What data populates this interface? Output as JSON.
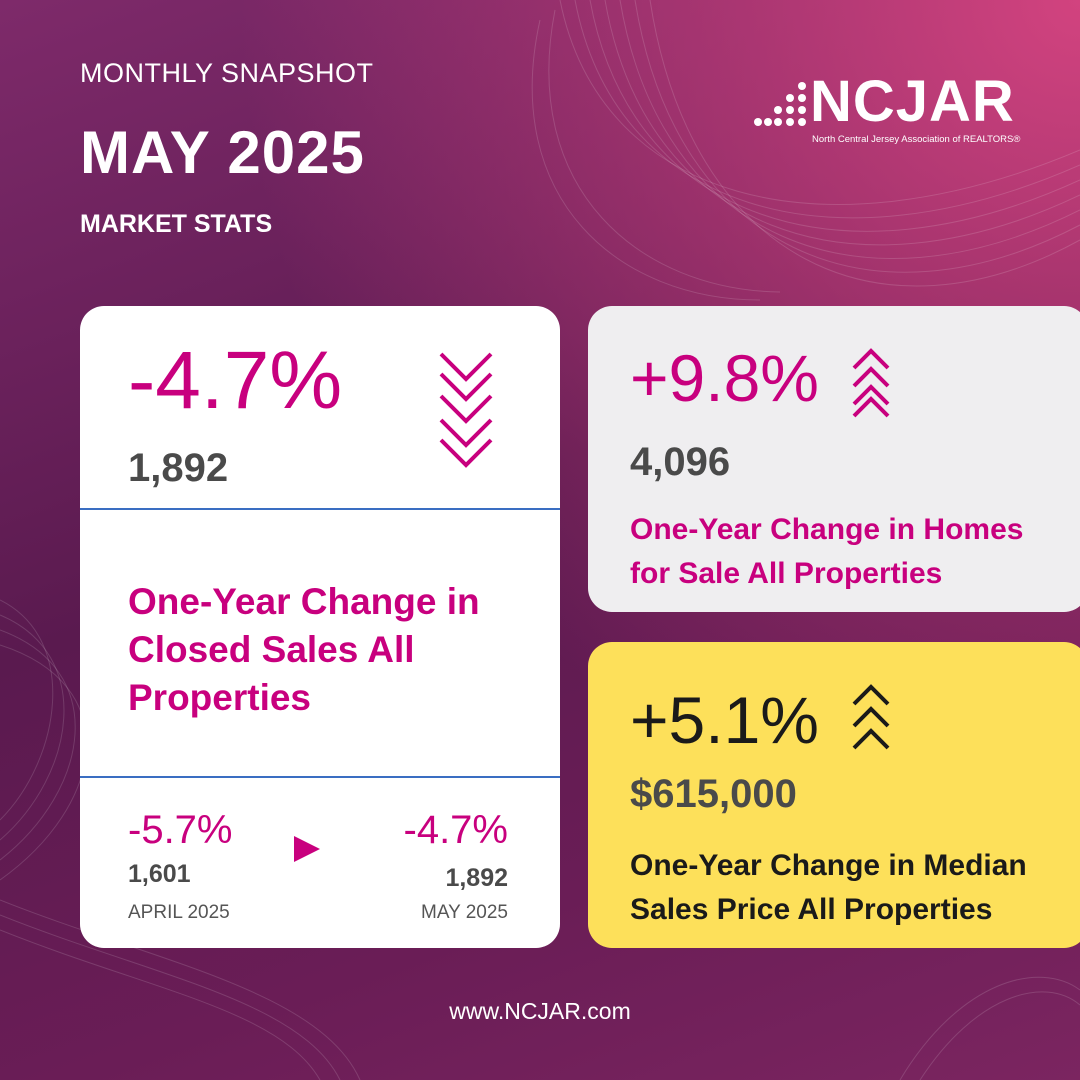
{
  "header": {
    "kicker": "MONTHLY SNAPSHOT",
    "title": "MAY 2025",
    "subtitle": "MARKET STATS"
  },
  "logo": {
    "name": "NCJAR",
    "tagline": "North Central Jersey Association of REALTORS®"
  },
  "closed_sales": {
    "change": "-4.7%",
    "count": "1,892",
    "description_lines": [
      "One-Year Change in",
      "Closed Sales All",
      "Properties"
    ],
    "trend": "down",
    "comparison": {
      "previous": {
        "change": "-5.7%",
        "count": "1,601",
        "label": "APRIL 2025"
      },
      "current": {
        "change": "-4.7%",
        "count": "1,892",
        "label": "MAY 2025"
      }
    }
  },
  "homes_for_sale": {
    "change": "+9.8%",
    "count": "4,096",
    "description_lines": [
      "One-Year Change in Homes",
      "for Sale All Properties"
    ],
    "trend": "up"
  },
  "median_price": {
    "change": "+5.1%",
    "value": "$615,000",
    "description_lines": [
      "One-Year Change in Median",
      "Sales Price All Properties"
    ],
    "trend": "up"
  },
  "footer": {
    "url": "www.NCJAR.com"
  },
  "colors": {
    "accent": "#c8007e",
    "background": "#6a1d56",
    "price_card": "#fde05a",
    "inventory_card": "#efeef0",
    "divider": "#3a6ec2"
  },
  "icons": [
    "chevron-double-down-icon",
    "chevron-triple-up-icon",
    "play-arrow-icon"
  ]
}
